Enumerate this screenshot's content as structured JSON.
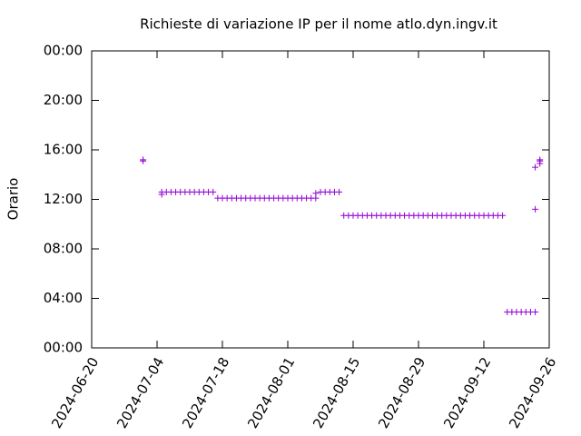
{
  "chart_data": {
    "type": "scatter",
    "title": "Richieste di variazione IP per il nome atlo.dyn.ingv.it",
    "y_label": "Orario",
    "color": "#9400d3",
    "xlim": [
      "2024-06-20",
      "2024-09-26"
    ],
    "xticks": [
      "2024-06-20",
      "2024-07-04",
      "2024-07-18",
      "2024-08-01",
      "2024-08-15",
      "2024-08-29",
      "2024-09-12",
      "2024-09-26"
    ],
    "ylim": [
      0,
      24
    ],
    "yticks": [
      {
        "value": 0,
        "label": "00:00"
      },
      {
        "value": 4,
        "label": "04:00"
      },
      {
        "value": 8,
        "label": "08:00"
      },
      {
        "value": 12,
        "label": "12:00"
      },
      {
        "value": 16,
        "label": "16:00"
      },
      {
        "value": 20,
        "label": "20:00"
      },
      {
        "value": 24,
        "label": "00:00"
      }
    ],
    "x": [
      "2024-07-01",
      "2024-07-01",
      "2024-07-05",
      "2024-07-05",
      "2024-07-06",
      "2024-07-07",
      "2024-07-08",
      "2024-07-09",
      "2024-07-10",
      "2024-07-11",
      "2024-07-12",
      "2024-07-13",
      "2024-07-14",
      "2024-07-15",
      "2024-07-16",
      "2024-07-17",
      "2024-07-18",
      "2024-07-19",
      "2024-07-20",
      "2024-07-21",
      "2024-07-22",
      "2024-07-23",
      "2024-07-24",
      "2024-07-25",
      "2024-07-26",
      "2024-07-27",
      "2024-07-28",
      "2024-07-29",
      "2024-07-30",
      "2024-07-31",
      "2024-08-01",
      "2024-08-02",
      "2024-08-03",
      "2024-08-04",
      "2024-08-05",
      "2024-08-06",
      "2024-08-07",
      "2024-08-07",
      "2024-08-08",
      "2024-08-09",
      "2024-08-10",
      "2024-08-11",
      "2024-08-12",
      "2024-08-13",
      "2024-08-14",
      "2024-08-15",
      "2024-08-16",
      "2024-08-17",
      "2024-08-18",
      "2024-08-19",
      "2024-08-20",
      "2024-08-21",
      "2024-08-22",
      "2024-08-23",
      "2024-08-24",
      "2024-08-25",
      "2024-08-26",
      "2024-08-27",
      "2024-08-28",
      "2024-08-29",
      "2024-08-30",
      "2024-08-31",
      "2024-09-01",
      "2024-09-02",
      "2024-09-03",
      "2024-09-04",
      "2024-09-05",
      "2024-09-06",
      "2024-09-07",
      "2024-09-08",
      "2024-09-09",
      "2024-09-10",
      "2024-09-11",
      "2024-09-12",
      "2024-09-13",
      "2024-09-14",
      "2024-09-15",
      "2024-09-16",
      "2024-09-17",
      "2024-09-18",
      "2024-09-19",
      "2024-09-20",
      "2024-09-21",
      "2024-09-22",
      "2024-09-23",
      "2024-09-23",
      "2024-09-23",
      "2024-09-24",
      "2024-09-24",
      "2024-09-24"
    ],
    "values": [
      15.2,
      15.1,
      12.6,
      12.4,
      12.6,
      12.6,
      12.6,
      12.6,
      12.6,
      12.6,
      12.6,
      12.6,
      12.6,
      12.6,
      12.6,
      12.1,
      12.1,
      12.1,
      12.1,
      12.1,
      12.1,
      12.1,
      12.1,
      12.1,
      12.1,
      12.1,
      12.1,
      12.1,
      12.1,
      12.1,
      12.1,
      12.1,
      12.1,
      12.1,
      12.1,
      12.1,
      12.1,
      12.5,
      12.6,
      12.6,
      12.6,
      12.6,
      12.6,
      10.7,
      10.7,
      10.7,
      10.7,
      10.7,
      10.7,
      10.7,
      10.7,
      10.7,
      10.7,
      10.7,
      10.7,
      10.7,
      10.7,
      10.7,
      10.7,
      10.7,
      10.7,
      10.7,
      10.7,
      10.7,
      10.7,
      10.7,
      10.7,
      10.7,
      10.7,
      10.7,
      10.7,
      10.7,
      10.7,
      10.7,
      10.7,
      10.7,
      10.7,
      10.7,
      2.9,
      2.9,
      2.9,
      2.9,
      2.9,
      2.9,
      2.9,
      11.2,
      14.6,
      14.9,
      15.2,
      15.1
    ]
  }
}
